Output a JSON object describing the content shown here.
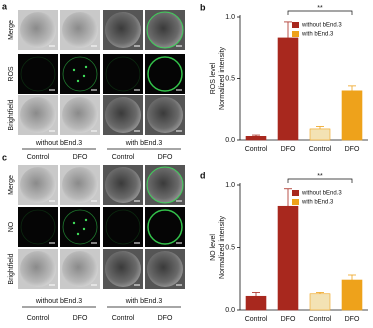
{
  "panels": [
    {
      "label": "a",
      "rows": [
        "Merge",
        "ROS",
        "Brightfield"
      ],
      "groups": [
        "without bEnd.3",
        "with bEnd.3"
      ]
    },
    {
      "label": "c",
      "conditions_top": [
        "Control",
        "DFO",
        "Control",
        "DFO"
      ],
      "rows": [
        "Merge",
        "NO",
        "Brightfield"
      ],
      "groups": [
        "without bEnd.3",
        "with bEnd.3"
      ],
      "conditions": [
        "Control",
        "DFO",
        "Control",
        "DFO"
      ]
    }
  ],
  "chart_data": [
    {
      "type": "bar",
      "label": "b",
      "ylabel": [
        "ROS level",
        "Normalized intensity"
      ],
      "categories": [
        "Control",
        "DFO",
        "Control",
        "DFO"
      ],
      "values": [
        0.03,
        0.83,
        0.09,
        0.4
      ],
      "errors": [
        0.01,
        0.13,
        0.02,
        0.04
      ],
      "colors": [
        "#a8281e",
        "#a8281e",
        "#f3e2b4",
        "#eea21b"
      ],
      "legend": [
        {
          "name": "without bEnd.3",
          "color": "#a8281e"
        },
        {
          "name": "with bEnd.3",
          "color": "#eea21b"
        }
      ],
      "annotation": "**",
      "ylim": [
        0,
        1.0
      ],
      "yticks": [
        {
          "value": 0,
          "label": "0.0"
        },
        {
          "value": 0.5,
          "label": "0.5"
        },
        {
          "value": 1.0,
          "label": "1.0"
        }
      ]
    },
    {
      "type": "bar",
      "label": "d",
      "ylabel": [
        "NO level",
        "Normalized intensity"
      ],
      "categories": [
        "Control",
        "DFO",
        "Control",
        "DFO"
      ],
      "values": [
        0.11,
        0.83,
        0.13,
        0.24
      ],
      "errors": [
        0.03,
        0.14,
        0.01,
        0.04
      ],
      "colors": [
        "#a8281e",
        "#a8281e",
        "#f3e2b4",
        "#eea21b"
      ],
      "legend": [
        {
          "name": "without bEnd.3",
          "color": "#a8281e"
        },
        {
          "name": "with bEnd.3",
          "color": "#eea21b"
        }
      ],
      "annotation": "**",
      "ylim": [
        0,
        1.0
      ],
      "yticks": [
        {
          "value": 0,
          "label": "0.0"
        },
        {
          "value": 0.5,
          "label": "0.5"
        },
        {
          "value": 1.0,
          "label": "1.0"
        }
      ]
    }
  ]
}
